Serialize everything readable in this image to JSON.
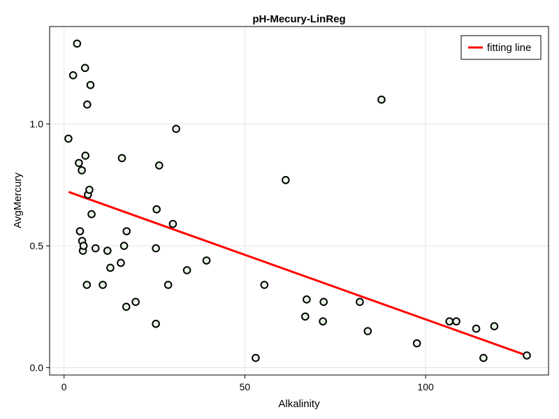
{
  "chart_data": {
    "type": "scatter",
    "title": "pH-Mecury-LinReg",
    "xlabel": "Alkalinity",
    "ylabel": "AvgMercury",
    "xlim": [
      -4,
      134
    ],
    "ylim": [
      -0.03,
      1.4
    ],
    "xticks": [
      0,
      50,
      100
    ],
    "xtick_labels": [
      "0",
      "50",
      "100"
    ],
    "yticks": [
      0.0,
      0.5,
      1.0
    ],
    "ytick_labels": [
      "0.0",
      "0.5",
      "1.0"
    ],
    "grid": true,
    "legend_position": "top-right",
    "series": [
      {
        "type": "scatter",
        "marker_face": "#e8f5e6",
        "marker_edge": "#000000",
        "points": [
          [
            1.2,
            0.94
          ],
          [
            2.5,
            1.2
          ],
          [
            3.6,
            1.33
          ],
          [
            4.1,
            0.84
          ],
          [
            4.4,
            0.56
          ],
          [
            4.9,
            0.81
          ],
          [
            5.0,
            0.52
          ],
          [
            5.2,
            0.48
          ],
          [
            5.4,
            0.5
          ],
          [
            5.8,
            1.23
          ],
          [
            5.9,
            0.87
          ],
          [
            6.3,
            0.34
          ],
          [
            6.4,
            1.08
          ],
          [
            6.6,
            0.71
          ],
          [
            7.0,
            0.73
          ],
          [
            7.3,
            1.16
          ],
          [
            7.6,
            0.63
          ],
          [
            8.7,
            0.49
          ],
          [
            10.7,
            0.34
          ],
          [
            12.0,
            0.48
          ],
          [
            12.8,
            0.41
          ],
          [
            15.7,
            0.43
          ],
          [
            16.0,
            0.86
          ],
          [
            16.6,
            0.5
          ],
          [
            17.2,
            0.25
          ],
          [
            17.3,
            0.56
          ],
          [
            19.8,
            0.27
          ],
          [
            25.4,
            0.49
          ],
          [
            25.4,
            0.18
          ],
          [
            25.6,
            0.65
          ],
          [
            26.3,
            0.83
          ],
          [
            28.8,
            0.34
          ],
          [
            30.1,
            0.59
          ],
          [
            31.0,
            0.98
          ],
          [
            34.0,
            0.4
          ],
          [
            39.4,
            0.44
          ],
          [
            53.0,
            0.04
          ],
          [
            55.4,
            0.34
          ],
          [
            61.3,
            0.77
          ],
          [
            66.7,
            0.21
          ],
          [
            67.1,
            0.28
          ],
          [
            71.6,
            0.19
          ],
          [
            71.8,
            0.27
          ],
          [
            81.8,
            0.27
          ],
          [
            84.0,
            0.15
          ],
          [
            87.8,
            1.1
          ],
          [
            97.6,
            0.1
          ],
          [
            106.6,
            0.19
          ],
          [
            108.5,
            0.19
          ],
          [
            114.0,
            0.16
          ],
          [
            116.0,
            0.04
          ],
          [
            119.0,
            0.17
          ],
          [
            128.0,
            0.05
          ]
        ]
      },
      {
        "type": "line",
        "name": "fitting line",
        "color": "#ff0000",
        "points": [
          [
            1.5,
            0.72
          ],
          [
            128.0,
            0.05
          ]
        ]
      }
    ]
  }
}
